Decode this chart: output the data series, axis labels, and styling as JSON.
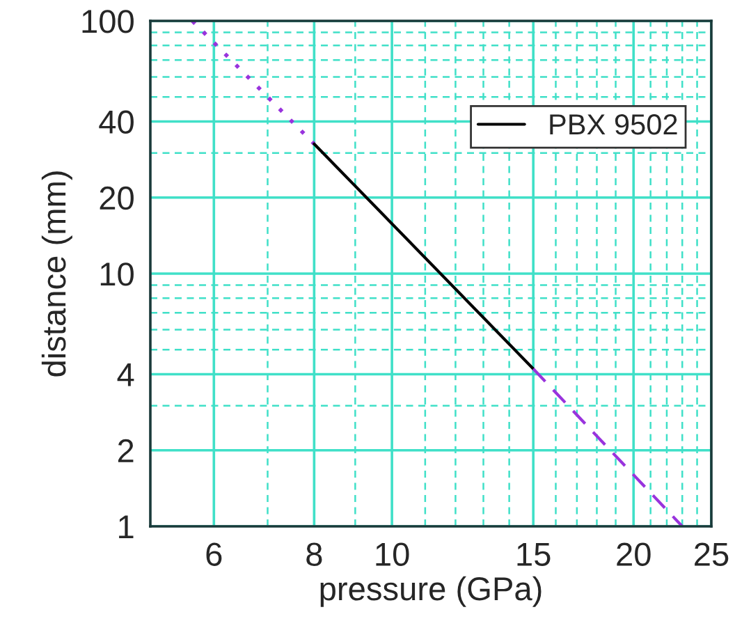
{
  "chart_data": {
    "type": "line",
    "xlabel": "pressure (GPa)",
    "ylabel": "distance (mm)",
    "log": "xy",
    "grid": true,
    "legend": "top right",
    "xlim": [
      5,
      25
    ],
    "ylim": [
      1,
      100
    ],
    "xticks": [
      6,
      {
        "value": 7,
        "label": null
      },
      8,
      {
        "value": 9,
        "label": null
      },
      10,
      {
        "value": 11,
        "label": null
      },
      {
        "value": 12,
        "label": null
      },
      {
        "value": 13,
        "label": null
      },
      {
        "value": 14,
        "label": null
      },
      15,
      {
        "value": 16,
        "label": null
      },
      {
        "value": 17,
        "label": null
      },
      {
        "value": 18,
        "label": null
      },
      {
        "value": 19,
        "label": null
      },
      20,
      {
        "value": 21,
        "label": null
      },
      {
        "value": 22,
        "label": null
      },
      {
        "value": 23,
        "label": null
      },
      {
        "value": 24,
        "label": null
      },
      25
    ],
    "yticks": [
      1,
      2,
      {
        "value": 3,
        "label": null
      },
      4,
      {
        "value": 5,
        "label": null
      },
      {
        "value": 6,
        "label": null
      },
      {
        "value": 7,
        "label": null
      },
      {
        "value": 8,
        "label": null
      },
      {
        "value": 9,
        "label": null
      },
      10,
      20,
      {
        "value": 30,
        "label": null
      },
      40,
      {
        "value": 50,
        "label": null
      },
      {
        "value": 60,
        "label": null
      },
      {
        "value": 70,
        "label": null
      },
      {
        "value": 80,
        "label": null
      },
      {
        "value": 90,
        "label": null
      },
      100
    ],
    "series": [
      {
        "x": [
          5.64,
          8.0
        ],
        "values": [
          100,
          32.6
        ],
        "color": "#9933dd",
        "line_style": "dotted"
      },
      {
        "name": "PBX 9502",
        "x": [
          8.0,
          15.0
        ],
        "values": [
          32.6,
          4.2
        ],
        "color": "#000000",
        "line_style": "solid"
      },
      {
        "x": [
          15.0,
          23.0
        ],
        "values": [
          4.2,
          1
        ],
        "color": "#9933dd",
        "line_style": "dashed"
      }
    ]
  }
}
